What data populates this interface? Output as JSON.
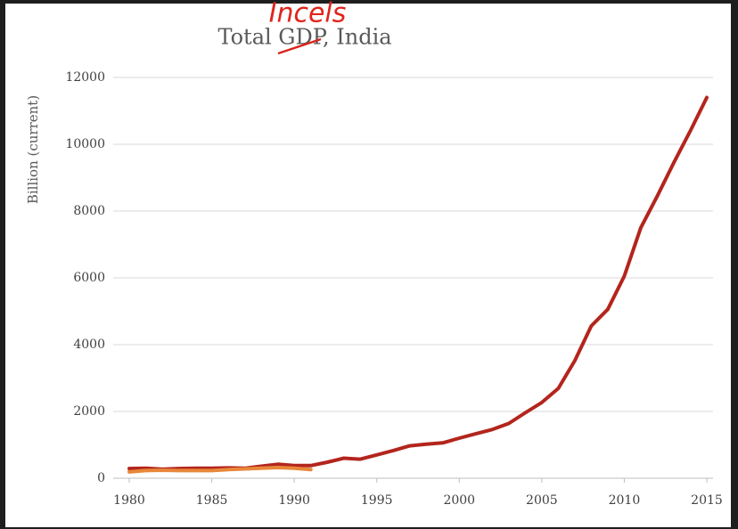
{
  "chart_data": {
    "type": "line",
    "title": "Total GDP, India",
    "annotation": "Incels",
    "y_label": "Billion (current)",
    "x": [
      1980,
      1981,
      1982,
      1983,
      1984,
      1985,
      1986,
      1987,
      1988,
      1989,
      1990,
      1991,
      1992,
      1993,
      1994,
      1995,
      1996,
      1997,
      1998,
      1999,
      2000,
      2001,
      2002,
      2003,
      2004,
      2005,
      2006,
      2007,
      2008,
      2009,
      2010,
      2011,
      2012,
      2013,
      2014,
      2015
    ],
    "series": [
      {
        "color": "#b3251d",
        "values": [
          290,
          300,
          270,
          290,
          300,
          300,
          310,
          300,
          360,
          420,
          380,
          380,
          480,
          600,
          570,
          700,
          830,
          970,
          1020,
          1060,
          1200,
          1330,
          1460,
          1640,
          1960,
          2270,
          2690,
          3520,
          4560,
          5060,
          6050,
          7500,
          8450,
          9450,
          10400,
          11400
        ]
      },
      {
        "color": "#e8873a",
        "values": [
          190,
          230,
          240,
          230,
          230,
          230,
          260,
          280,
          300,
          320,
          300,
          260,
          null,
          null,
          null,
          null,
          null,
          null,
          null,
          null,
          null,
          null,
          null,
          null,
          null,
          null,
          null,
          null,
          null,
          null,
          null,
          null,
          null,
          null,
          null,
          null
        ]
      }
    ],
    "xlim": [
      1980,
      2015
    ],
    "ylim": [
      0,
      12000
    ],
    "xticks": [
      1980,
      1985,
      1990,
      1995,
      2000,
      2005,
      2010,
      2015
    ],
    "yticks": [
      0,
      2000,
      4000,
      6000,
      8000,
      10000,
      12000
    ],
    "grid": true
  }
}
